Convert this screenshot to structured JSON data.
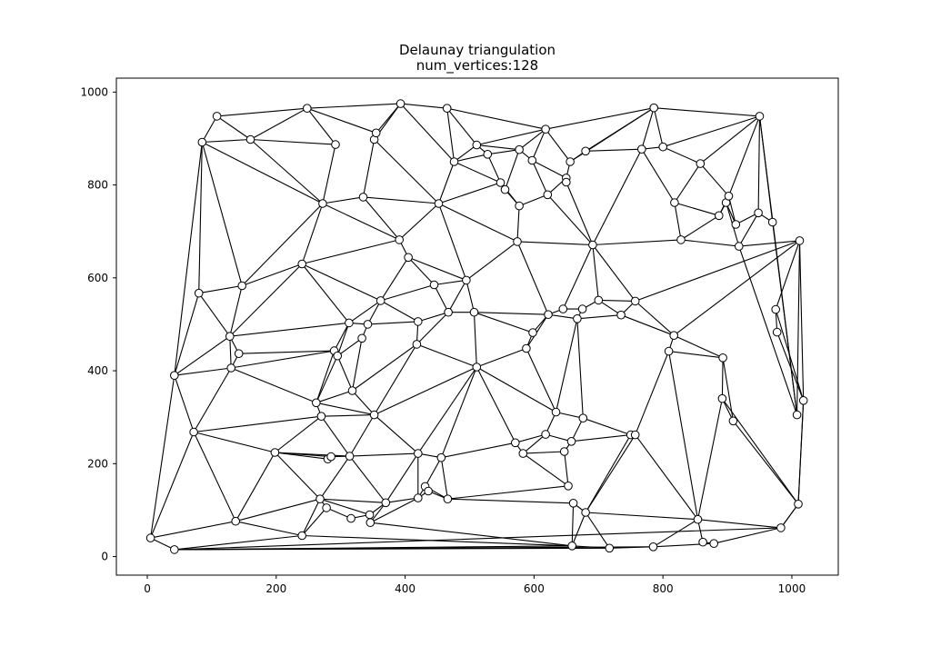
{
  "chart_data": {
    "type": "scatter",
    "title": "Delaunay triangulation",
    "subtitle": "num_vertices:128",
    "xlabel": "",
    "ylabel": "",
    "xlim": [
      -48,
      1072
    ],
    "ylim": [
      -40,
      1030
    ],
    "x_ticks": [
      0,
      200,
      400,
      600,
      800,
      1000
    ],
    "y_ticks": [
      0,
      200,
      400,
      600,
      800,
      1000
    ],
    "x_tick_labels": [
      "0",
      "200",
      "400",
      "600",
      "800",
      "1000"
    ],
    "y_tick_labels": [
      "0",
      "200",
      "400",
      "600",
      "800",
      "1000"
    ],
    "grid": false,
    "legend": "none",
    "colors": {
      "edge": "#000000",
      "vertex_fill": "#ffffff",
      "vertex_stroke": "#000000"
    },
    "vertices": [
      [
        5,
        40
      ],
      [
        42,
        15
      ],
      [
        42,
        390
      ],
      [
        72,
        268
      ],
      [
        80,
        567
      ],
      [
        85,
        892
      ],
      [
        108,
        948
      ],
      [
        128,
        474
      ],
      [
        130,
        406
      ],
      [
        137,
        76
      ],
      [
        142,
        437
      ],
      [
        147,
        583
      ],
      [
        160,
        898
      ],
      [
        198,
        224
      ],
      [
        240,
        45
      ],
      [
        240,
        630
      ],
      [
        248,
        965
      ],
      [
        262,
        331
      ],
      [
        268,
        124
      ],
      [
        270,
        302
      ],
      [
        272,
        760
      ],
      [
        278,
        105
      ],
      [
        280,
        210
      ],
      [
        285,
        215
      ],
      [
        290,
        443
      ],
      [
        292,
        887
      ],
      [
        295,
        432
      ],
      [
        313,
        503
      ],
      [
        314,
        216
      ],
      [
        316,
        82
      ],
      [
        318,
        357
      ],
      [
        333,
        470
      ],
      [
        335,
        774
      ],
      [
        342,
        500
      ],
      [
        345,
        90
      ],
      [
        346,
        73
      ],
      [
        352,
        305
      ],
      [
        352,
        898
      ],
      [
        355,
        912
      ],
      [
        362,
        551
      ],
      [
        370,
        116
      ],
      [
        391,
        682
      ],
      [
        393,
        975
      ],
      [
        405,
        644
      ],
      [
        418,
        457
      ],
      [
        420,
        126
      ],
      [
        420,
        222
      ],
      [
        420,
        506
      ],
      [
        431,
        151
      ],
      [
        436,
        141
      ],
      [
        445,
        585
      ],
      [
        452,
        760
      ],
      [
        456,
        213
      ],
      [
        465,
        965
      ],
      [
        466,
        124
      ],
      [
        467,
        526
      ],
      [
        476,
        850
      ],
      [
        495,
        595
      ],
      [
        507,
        526
      ],
      [
        511,
        408
      ],
      [
        511,
        886
      ],
      [
        528,
        866
      ],
      [
        548,
        805
      ],
      [
        555,
        790
      ],
      [
        571,
        245
      ],
      [
        574,
        678
      ],
      [
        577,
        755
      ],
      [
        577,
        876
      ],
      [
        583,
        222
      ],
      [
        588,
        448
      ],
      [
        597,
        853
      ],
      [
        598,
        482
      ],
      [
        618,
        263
      ],
      [
        618,
        920
      ],
      [
        621,
        779
      ],
      [
        622,
        521
      ],
      [
        634,
        311
      ],
      [
        645,
        533
      ],
      [
        647,
        226
      ],
      [
        650,
        815
      ],
      [
        650,
        806
      ],
      [
        653,
        152
      ],
      [
        656,
        850
      ],
      [
        658,
        248
      ],
      [
        659,
        23
      ],
      [
        661,
        115
      ],
      [
        667,
        512
      ],
      [
        675,
        533
      ],
      [
        676,
        298
      ],
      [
        680,
        95
      ],
      [
        680,
        873
      ],
      [
        691,
        671
      ],
      [
        700,
        552
      ],
      [
        717,
        18
      ],
      [
        735,
        520
      ],
      [
        750,
        262
      ],
      [
        757,
        262
      ],
      [
        757,
        550
      ],
      [
        767,
        877
      ],
      [
        785,
        21
      ],
      [
        786,
        966
      ],
      [
        800,
        882
      ],
      [
        809,
        442
      ],
      [
        817,
        476
      ],
      [
        818,
        762
      ],
      [
        828,
        682
      ],
      [
        854,
        80
      ],
      [
        858,
        846
      ],
      [
        862,
        31
      ],
      [
        879,
        28
      ],
      [
        887,
        734
      ],
      [
        892,
        340
      ],
      [
        893,
        428
      ],
      [
        898,
        762
      ],
      [
        902,
        776
      ],
      [
        909,
        292
      ],
      [
        913,
        715
      ],
      [
        918,
        668
      ],
      [
        948,
        740
      ],
      [
        950,
        948
      ],
      [
        970,
        720
      ],
      [
        975,
        532
      ],
      [
        977,
        483
      ],
      [
        1008,
        305
      ],
      [
        1010,
        113
      ],
      [
        1012,
        680
      ],
      [
        1018,
        336
      ],
      [
        983,
        62
      ]
    ],
    "edges": [
      [
        0,
        1
      ],
      [
        0,
        2
      ],
      [
        0,
        3
      ],
      [
        0,
        9
      ],
      [
        1,
        14
      ],
      [
        1,
        84
      ],
      [
        1,
        93
      ],
      [
        1,
        99
      ],
      [
        2,
        3
      ],
      [
        2,
        4
      ],
      [
        2,
        5
      ],
      [
        2,
        7
      ],
      [
        2,
        8
      ],
      [
        3,
        8
      ],
      [
        3,
        9
      ],
      [
        3,
        13
      ],
      [
        3,
        19
      ],
      [
        4,
        5
      ],
      [
        4,
        7
      ],
      [
        4,
        11
      ],
      [
        5,
        6
      ],
      [
        5,
        11
      ],
      [
        5,
        12
      ],
      [
        5,
        20
      ],
      [
        6,
        12
      ],
      [
        6,
        16
      ],
      [
        7,
        8
      ],
      [
        7,
        10
      ],
      [
        7,
        11
      ],
      [
        7,
        15
      ],
      [
        7,
        27
      ],
      [
        8,
        17
      ],
      [
        8,
        10
      ],
      [
        8,
        24
      ],
      [
        9,
        13
      ],
      [
        9,
        14
      ],
      [
        9,
        18
      ],
      [
        11,
        15
      ],
      [
        11,
        20
      ],
      [
        12,
        16
      ],
      [
        12,
        20
      ],
      [
        12,
        25
      ],
      [
        13,
        18
      ],
      [
        13,
        19
      ],
      [
        13,
        22
      ],
      [
        13,
        23
      ],
      [
        13,
        28
      ],
      [
        14,
        18
      ],
      [
        14,
        21
      ],
      [
        14,
        84
      ],
      [
        15,
        20
      ],
      [
        15,
        27
      ],
      [
        15,
        39
      ],
      [
        15,
        41
      ],
      [
        16,
        25
      ],
      [
        16,
        38
      ],
      [
        16,
        42
      ],
      [
        17,
        19
      ],
      [
        17,
        24
      ],
      [
        17,
        26
      ],
      [
        17,
        30
      ],
      [
        17,
        36
      ],
      [
        18,
        21
      ],
      [
        18,
        28
      ],
      [
        18,
        34
      ],
      [
        18,
        40
      ],
      [
        19,
        28
      ],
      [
        19,
        36
      ],
      [
        20,
        25
      ],
      [
        20,
        32
      ],
      [
        20,
        41
      ],
      [
        22,
        23
      ],
      [
        23,
        28
      ],
      [
        24,
        26
      ],
      [
        24,
        27
      ],
      [
        24,
        10
      ],
      [
        26,
        30
      ],
      [
        26,
        31
      ],
      [
        26,
        27
      ],
      [
        27,
        33
      ],
      [
        27,
        39
      ],
      [
        28,
        36
      ],
      [
        28,
        40
      ],
      [
        28,
        46
      ],
      [
        29,
        34
      ],
      [
        29,
        21
      ],
      [
        30,
        31
      ],
      [
        30,
        36
      ],
      [
        30,
        44
      ],
      [
        31,
        33
      ],
      [
        32,
        37
      ],
      [
        32,
        41
      ],
      [
        32,
        51
      ],
      [
        33,
        39
      ],
      [
        33,
        47
      ],
      [
        34,
        35
      ],
      [
        34,
        40
      ],
      [
        35,
        40
      ],
      [
        35,
        45
      ],
      [
        35,
        84
      ],
      [
        36,
        44
      ],
      [
        36,
        46
      ],
      [
        36,
        59
      ],
      [
        37,
        38
      ],
      [
        37,
        42
      ],
      [
        37,
        51
      ],
      [
        38,
        42
      ],
      [
        39,
        43
      ],
      [
        39,
        47
      ],
      [
        39,
        50
      ],
      [
        40,
        45
      ],
      [
        40,
        46
      ],
      [
        41,
        43
      ],
      [
        41,
        51
      ],
      [
        42,
        53
      ],
      [
        42,
        56
      ],
      [
        43,
        50
      ],
      [
        43,
        57
      ],
      [
        44,
        47
      ],
      [
        44,
        55
      ],
      [
        44,
        59
      ],
      [
        45,
        48
      ],
      [
        45,
        49
      ],
      [
        45,
        46
      ],
      [
        46,
        52
      ],
      [
        46,
        59
      ],
      [
        47,
        55
      ],
      [
        48,
        49
      ],
      [
        48,
        52
      ],
      [
        48,
        54
      ],
      [
        49,
        54
      ],
      [
        50,
        55
      ],
      [
        50,
        57
      ],
      [
        51,
        56
      ],
      [
        51,
        57
      ],
      [
        51,
        62
      ],
      [
        51,
        65
      ],
      [
        52,
        54
      ],
      [
        52,
        59
      ],
      [
        52,
        64
      ],
      [
        53,
        56
      ],
      [
        53,
        60
      ],
      [
        53,
        73
      ],
      [
        54,
        81
      ],
      [
        54,
        85
      ],
      [
        55,
        57
      ],
      [
        55,
        58
      ],
      [
        56,
        60
      ],
      [
        56,
        61
      ],
      [
        56,
        62
      ],
      [
        57,
        58
      ],
      [
        57,
        65
      ],
      [
        58,
        59
      ],
      [
        58,
        71
      ],
      [
        58,
        75
      ],
      [
        59,
        64
      ],
      [
        59,
        69
      ],
      [
        59,
        76
      ],
      [
        60,
        61
      ],
      [
        60,
        67
      ],
      [
        60,
        73
      ],
      [
        61,
        62
      ],
      [
        61,
        67
      ],
      [
        62,
        63
      ],
      [
        62,
        66
      ],
      [
        63,
        66
      ],
      [
        63,
        67
      ],
      [
        64,
        68
      ],
      [
        64,
        72
      ],
      [
        65,
        66
      ],
      [
        65,
        75
      ],
      [
        65,
        91
      ],
      [
        66,
        74
      ],
      [
        67,
        70
      ],
      [
        67,
        73
      ],
      [
        68,
        72
      ],
      [
        68,
        78
      ],
      [
        68,
        81
      ],
      [
        69,
        71
      ],
      [
        69,
        76
      ],
      [
        69,
        75
      ],
      [
        70,
        73
      ],
      [
        70,
        74
      ],
      [
        70,
        79
      ],
      [
        71,
        75
      ],
      [
        72,
        76
      ],
      [
        72,
        83
      ],
      [
        73,
        82
      ],
      [
        73,
        100
      ],
      [
        74,
        79
      ],
      [
        74,
        91
      ],
      [
        75,
        77
      ],
      [
        75,
        86
      ],
      [
        76,
        88
      ],
      [
        76,
        86
      ],
      [
        77,
        87
      ],
      [
        77,
        91
      ],
      [
        78,
        83
      ],
      [
        78,
        81
      ],
      [
        79,
        80
      ],
      [
        79,
        82
      ],
      [
        80,
        91
      ],
      [
        82,
        90
      ],
      [
        82,
        100
      ],
      [
        83,
        88
      ],
      [
        83,
        95
      ],
      [
        84,
        85
      ],
      [
        84,
        89
      ],
      [
        84,
        93
      ],
      [
        85,
        89
      ],
      [
        86,
        87
      ],
      [
        86,
        94
      ],
      [
        86,
        88
      ],
      [
        87,
        92
      ],
      [
        88,
        95
      ],
      [
        89,
        93
      ],
      [
        89,
        95
      ],
      [
        89,
        96
      ],
      [
        89,
        106
      ],
      [
        90,
        98
      ],
      [
        90,
        100
      ],
      [
        91,
        92
      ],
      [
        91,
        97
      ],
      [
        91,
        98
      ],
      [
        91,
        105
      ],
      [
        92,
        94
      ],
      [
        92,
        97
      ],
      [
        93,
        99
      ],
      [
        94,
        97
      ],
      [
        94,
        103
      ],
      [
        95,
        96
      ],
      [
        96,
        102
      ],
      [
        96,
        106
      ],
      [
        97,
        103
      ],
      [
        97,
        125
      ],
      [
        98,
        100
      ],
      [
        98,
        101
      ],
      [
        98,
        104
      ],
      [
        99,
        106
      ],
      [
        99,
        109
      ],
      [
        100,
        101
      ],
      [
        100,
        119
      ],
      [
        101,
        107
      ],
      [
        101,
        119
      ],
      [
        102,
        103
      ],
      [
        102,
        106
      ],
      [
        102,
        112
      ],
      [
        103,
        112
      ],
      [
        103,
        125
      ],
      [
        104,
        105
      ],
      [
        104,
        107
      ],
      [
        104,
        110
      ],
      [
        105,
        110
      ],
      [
        105,
        117
      ],
      [
        106,
        108
      ],
      [
        106,
        111
      ],
      [
        106,
        127
      ],
      [
        107,
        114
      ],
      [
        107,
        119
      ],
      [
        108,
        109
      ],
      [
        109,
        127
      ],
      [
        110,
        113
      ],
      [
        110,
        114
      ],
      [
        111,
        115
      ],
      [
        111,
        124
      ],
      [
        112,
        115
      ],
      [
        112,
        111
      ],
      [
        113,
        116
      ],
      [
        113,
        117
      ],
      [
        114,
        116
      ],
      [
        114,
        119
      ],
      [
        115,
        124
      ],
      [
        116,
        118
      ],
      [
        117,
        118
      ],
      [
        117,
        123
      ],
      [
        117,
        125
      ],
      [
        118,
        120
      ],
      [
        118,
        119
      ],
      [
        119,
        120
      ],
      [
        119,
        123
      ],
      [
        120,
        123
      ],
      [
        121,
        122
      ],
      [
        121,
        125
      ],
      [
        121,
        126
      ],
      [
        122,
        126
      ],
      [
        123,
        125
      ],
      [
        124,
        126
      ],
      [
        124,
        127
      ],
      [
        125,
        126
      ],
      [
        126,
        124
      ],
      [
        127,
        124
      ],
      [
        1,
        127
      ]
    ]
  }
}
